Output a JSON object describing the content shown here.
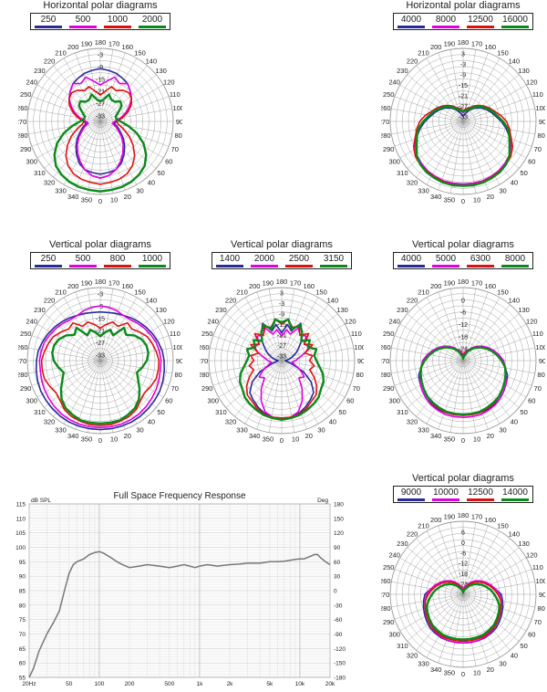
{
  "colors": {
    "blue": "#2a2a9a",
    "magenta": "#e000e0",
    "red": "#e01010",
    "green": "#0a8a1a",
    "grid": "#9a9a9a",
    "fr": "#777777"
  },
  "chart_data": [
    {
      "type": "polar",
      "id": "hp1",
      "title": "Horizontal polar diagrams",
      "legend": [
        "250",
        "500",
        "1000",
        "2000"
      ],
      "angle_labels": [
        "190",
        "180",
        "170",
        "160",
        "150",
        "140",
        "130",
        "120",
        "110",
        "100",
        "90",
        "80",
        "70",
        "60",
        "50",
        "40",
        "30",
        "20",
        "10",
        "0",
        "350",
        "340",
        "330",
        "320",
        "310",
        "300",
        "290",
        "280",
        "270",
        "260",
        "250",
        "240",
        "230",
        "220",
        "210",
        "200"
      ],
      "radial_labels": [
        "-3",
        "-9",
        "-15",
        "-21",
        "-27",
        "-33"
      ],
      "rmin_db": -36,
      "rmax_db": 0,
      "inverted": false,
      "series": [
        {
          "name": "250",
          "color": "blue",
          "values": [
            -10,
            -10.5,
            -11,
            -12,
            -13,
            -15,
            -17,
            -19,
            -22,
            -25,
            -28,
            -29,
            -27,
            -25,
            -22,
            -19,
            -16,
            -13,
            -11,
            -10.5,
            -10
          ]
        },
        {
          "name": "500",
          "color": "magenta",
          "values": [
            -18,
            -16,
            -13,
            -15,
            -13,
            -15,
            -17,
            -20,
            -23,
            -26,
            -29,
            -30,
            -28,
            -26,
            -23,
            -20,
            -17,
            -14,
            -11,
            -9,
            -8
          ]
        },
        {
          "name": "1000",
          "color": "red",
          "values": [
            -23,
            -21,
            -18,
            -19,
            -17,
            -16,
            -17,
            -19,
            -22,
            -25,
            -28,
            -27,
            -24,
            -20,
            -16,
            -12,
            -9,
            -7,
            -6,
            -5.5,
            -5
          ]
        },
        {
          "name": "2000",
          "color": "green",
          "values": [
            -26,
            -25,
            -22,
            -24,
            -24,
            -22,
            -23,
            -26,
            -28,
            -28,
            -26,
            -22,
            -17,
            -12,
            -8,
            -5,
            -3.5,
            -2.5,
            -2,
            -1.8,
            -1.5
          ]
        }
      ]
    },
    {
      "type": "polar",
      "id": "hp2",
      "title": "Horizontal polar diagrams",
      "legend": [
        "4000",
        "8000",
        "12500",
        "16000"
      ],
      "angle_labels": [
        "190",
        "180",
        "170",
        "160",
        "150",
        "140",
        "130",
        "120",
        "110",
        "100",
        "90",
        "80",
        "70",
        "60",
        "50",
        "40",
        "30",
        "20",
        "10",
        "0",
        "350",
        "340",
        "330",
        "320",
        "310",
        "300",
        "290",
        "280",
        "270",
        "260",
        "250",
        "240",
        "230",
        "220",
        "210",
        "200"
      ],
      "radial_labels": [
        "3",
        "-3",
        "-9",
        "-15",
        "-21",
        "-27",
        "-33"
      ],
      "rmin_db": -36,
      "rmax_db": 6,
      "inverted": false,
      "series": [
        {
          "name": "4000",
          "color": "blue",
          "values": [
            -33,
            -32,
            -31,
            -29,
            -27,
            -25,
            -23,
            -21,
            -19,
            -17,
            -14,
            -11,
            -8,
            -5,
            -3,
            -1.5,
            -0.5,
            0,
            0.3,
            0.5,
            0.5
          ]
        },
        {
          "name": "8000",
          "color": "magenta",
          "values": [
            -31,
            -30,
            -29,
            -27,
            -25,
            -23,
            -22,
            -20,
            -18,
            -16,
            -13,
            -10,
            -7,
            -5,
            -3,
            -2,
            -1,
            -0.5,
            0,
            0,
            0
          ]
        },
        {
          "name": "12500",
          "color": "red",
          "values": [
            -30,
            -29,
            -28,
            -27,
            -25,
            -23,
            -21,
            -19,
            -17,
            -14,
            -11,
            -9,
            -7,
            -4,
            -2,
            -1,
            -0.5,
            0,
            0.5,
            0.8,
            1
          ]
        },
        {
          "name": "16000",
          "color": "green",
          "values": [
            -30,
            -30,
            -29,
            -28,
            -26,
            -24,
            -22,
            -20,
            -18,
            -16,
            -13,
            -10,
            -8,
            -6,
            -3,
            -1,
            0,
            0.5,
            1,
            1.2,
            1
          ]
        }
      ]
    },
    {
      "type": "polar",
      "id": "vp1",
      "title": "Vertical polar diagrams",
      "legend": [
        "250",
        "500",
        "800",
        "1000"
      ],
      "angle_labels": [
        "190",
        "180",
        "170",
        "160",
        "150",
        "140",
        "130",
        "120",
        "110",
        "100",
        "90",
        "80",
        "70",
        "60",
        "50",
        "40",
        "30",
        "20",
        "10",
        "0",
        "350",
        "340",
        "330",
        "320",
        "310",
        "300",
        "290",
        "280",
        "270",
        "260",
        "250",
        "240",
        "230",
        "220",
        "210",
        "200"
      ],
      "radial_labels": [
        "-3",
        "-9",
        "-15",
        "-21",
        "-27",
        "-33"
      ],
      "rmin_db": -36,
      "rmax_db": 0,
      "inverted": false,
      "series": [
        {
          "name": "250",
          "color": "blue",
          "values": [
            -12,
            -12,
            -11.5,
            -11,
            -10,
            -9,
            -8,
            -7,
            -6,
            -5,
            -4.5,
            -4,
            -3.5,
            -3,
            -2.8,
            -2.5,
            -2.2,
            -2,
            -2,
            -2,
            -2
          ]
        },
        {
          "name": "500",
          "color": "magenta",
          "values": [
            -9,
            -9.5,
            -10,
            -11,
            -11,
            -10,
            -9,
            -8,
            -7,
            -6.5,
            -6,
            -6,
            -5.5,
            -5,
            -4.5,
            -4,
            -3.5,
            -3.2,
            -3,
            -3,
            -3
          ]
        },
        {
          "name": "800",
          "color": "red",
          "values": [
            -20,
            -18,
            -16,
            -17,
            -13,
            -14,
            -12,
            -10,
            -9,
            -8,
            -7,
            -7,
            -7,
            -8,
            -9,
            -8,
            -6,
            -5,
            -4.5,
            -4,
            -4
          ]
        },
        {
          "name": "1000",
          "color": "green",
          "values": [
            -24,
            -22,
            -20,
            -22,
            -16,
            -18,
            -15,
            -13,
            -12,
            -12,
            -13,
            -15,
            -17,
            -15,
            -12,
            -9,
            -7,
            -6,
            -5,
            -5,
            -5
          ]
        }
      ]
    },
    {
      "type": "polar",
      "id": "vp2",
      "title": "Vertical polar diagrams",
      "legend": [
        "1400",
        "2000",
        "2500",
        "3150"
      ],
      "angle_labels": [
        "190",
        "180",
        "170",
        "160",
        "150",
        "140",
        "130",
        "120",
        "110",
        "100",
        "90",
        "80",
        "70",
        "60",
        "50",
        "40",
        "30",
        "20",
        "10",
        "0",
        "350",
        "340",
        "330",
        "320",
        "310",
        "300",
        "290",
        "280",
        "270",
        "260",
        "250",
        "240",
        "230",
        "220",
        "210",
        "200"
      ],
      "radial_labels": [
        "3",
        "-3",
        "-9",
        "-15",
        "-21",
        "-27",
        "-33"
      ],
      "rmin_db": -36,
      "rmax_db": 6,
      "inverted": false,
      "series": [
        {
          "name": "1400",
          "color": "blue",
          "values": [
            -20,
            -15,
            -18,
            -12,
            -16,
            -20,
            -24,
            -27,
            -30,
            -32,
            -34,
            -33,
            -30,
            -22,
            -15,
            -10,
            -8,
            -6,
            -4,
            -3,
            -2.5
          ]
        },
        {
          "name": "2000",
          "color": "magenta",
          "values": [
            -22,
            -18,
            -20,
            -15,
            -18,
            -16,
            -20,
            -18,
            -22,
            -26,
            -28,
            -30,
            -28,
            -24,
            -20,
            -22,
            -16,
            -10,
            -5,
            -3,
            -3
          ]
        },
        {
          "name": "2500",
          "color": "red",
          "values": [
            -15,
            -12,
            -16,
            -14,
            -18,
            -14,
            -20,
            -16,
            -22,
            -18,
            -20,
            -17,
            -19,
            -15,
            -11,
            -8,
            -7,
            -5,
            -3.5,
            -3,
            -3
          ]
        },
        {
          "name": "3150",
          "color": "green",
          "values": [
            -14,
            -12,
            -17,
            -13,
            -16,
            -20,
            -16,
            -19,
            -15,
            -17,
            -16,
            -14,
            -11,
            -9,
            -8,
            -6,
            -5,
            -4,
            -3,
            -2.5,
            -2
          ]
        }
      ]
    },
    {
      "type": "polar",
      "id": "vp3",
      "title": "Vertical polar diagrams",
      "legend": [
        "4000",
        "5000",
        "6300",
        "8000"
      ],
      "angle_labels": [
        "190",
        "180",
        "170",
        "160",
        "150",
        "140",
        "130",
        "120",
        "110",
        "100",
        "90",
        "80",
        "70",
        "60",
        "50",
        "40",
        "30",
        "20",
        "10",
        "0",
        "350",
        "340",
        "330",
        "320",
        "310",
        "300",
        "290",
        "280",
        "270",
        "260",
        "250",
        "240",
        "230",
        "220",
        "210",
        "200"
      ],
      "radial_labels": [
        "0",
        "-6",
        "-12",
        "-18",
        "-24"
      ],
      "rmin_db": -30,
      "rmax_db": 6,
      "inverted": false,
      "series": [
        {
          "name": "4000",
          "color": "blue",
          "values": [
            -28,
            -27,
            -26,
            -25,
            -23,
            -21,
            -19,
            -17,
            -15,
            -13,
            -11,
            -9,
            -7,
            -6,
            -5,
            -4,
            -3.5,
            -3,
            -3,
            -3,
            -3
          ]
        },
        {
          "name": "5000",
          "color": "magenta",
          "values": [
            -27,
            -26,
            -25,
            -24,
            -22,
            -20,
            -18,
            -16,
            -14,
            -12,
            -10,
            -9,
            -8,
            -6,
            -5,
            -4,
            -3,
            -2.5,
            -2,
            -2,
            -2
          ]
        },
        {
          "name": "6300",
          "color": "red",
          "values": [
            -28,
            -27,
            -26,
            -24,
            -23,
            -21,
            -19,
            -17,
            -15,
            -13,
            -11,
            -9,
            -8,
            -7,
            -6,
            -5,
            -4,
            -3.5,
            -3,
            -3,
            -3
          ]
        },
        {
          "name": "8000",
          "color": "green",
          "values": [
            -29,
            -28,
            -27,
            -25,
            -23,
            -21,
            -19,
            -17,
            -15,
            -13,
            -11,
            -9,
            -8,
            -7,
            -6,
            -5,
            -4.5,
            -4,
            -3.5,
            -3.5,
            -3.5
          ]
        }
      ]
    },
    {
      "type": "polar",
      "id": "vp4",
      "title": "Vertical polar diagrams",
      "legend": [
        "9000",
        "10000",
        "12500",
        "14000"
      ],
      "angle_labels": [
        "190",
        "180",
        "170",
        "160",
        "150",
        "140",
        "130",
        "120",
        "110",
        "100",
        "90",
        "80",
        "70",
        "60",
        "50",
        "40",
        "30",
        "20",
        "10",
        "0",
        "350",
        "340",
        "330",
        "320",
        "310",
        "300",
        "290",
        "280",
        "270",
        "260",
        "250",
        "240",
        "230",
        "220",
        "210",
        "200"
      ],
      "radial_labels": [
        "6",
        "0",
        "-6",
        "-12",
        "-18",
        "-24"
      ],
      "rmin_db": -30,
      "rmax_db": 12,
      "inverted": false,
      "series": [
        {
          "name": "9000",
          "color": "blue",
          "values": [
            -28,
            -27,
            -26,
            -24,
            -22,
            -20,
            -18,
            -16,
            -14,
            -11,
            -8,
            -7,
            -6,
            -5,
            -4,
            -3,
            -2.5,
            -2,
            -2,
            -2,
            -2
          ]
        },
        {
          "name": "10000",
          "color": "magenta",
          "values": [
            -27,
            -26,
            -25,
            -23,
            -21,
            -19,
            -17,
            -15,
            -13,
            -11,
            -9,
            -8,
            -7,
            -6,
            -5,
            -4,
            -3,
            -2.5,
            -2,
            -2,
            -2
          ]
        },
        {
          "name": "12500",
          "color": "red",
          "values": [
            -28,
            -27,
            -26,
            -24,
            -22,
            -20,
            -18,
            -16,
            -14,
            -12,
            -10,
            -8,
            -7,
            -6,
            -5,
            -4,
            -3.5,
            -3,
            -3,
            -3,
            -3
          ]
        },
        {
          "name": "14000",
          "color": "green",
          "values": [
            -29,
            -28,
            -27,
            -26,
            -24,
            -22,
            -20,
            -18,
            -16,
            -14,
            -12,
            -10,
            -8,
            -7,
            -6,
            -5,
            -4.5,
            -4,
            -4,
            -4,
            -4
          ]
        }
      ]
    },
    {
      "type": "line",
      "id": "fr",
      "title": "Full Space Frequency Response",
      "ylabel_left": "dB SPL",
      "ylabel_right": "Deg",
      "yticks_left": [
        "115",
        "110",
        "105",
        "100",
        "95",
        "90",
        "85",
        "80",
        "75",
        "70",
        "65",
        "60",
        "55"
      ],
      "yticks_right": [
        "180",
        "150",
        "120",
        "90",
        "60",
        "30",
        "0",
        "-30",
        "-60",
        "-90",
        "-120",
        "-150",
        "-180"
      ],
      "xticks": [
        "20Hz",
        "50",
        "100",
        "200",
        "500",
        "1k",
        "2k",
        "5k",
        "10k",
        "20k"
      ],
      "xtick_values": [
        20,
        50,
        100,
        200,
        500,
        1000,
        2000,
        5000,
        10000,
        20000
      ],
      "ylim": [
        55,
        115
      ],
      "xlim": [
        20,
        20000
      ],
      "series": [
        {
          "name": "SPL",
          "x": [
            20,
            22,
            25,
            30,
            35,
            40,
            45,
            50,
            55,
            60,
            70,
            80,
            90,
            100,
            110,
            130,
            150,
            170,
            200,
            250,
            300,
            400,
            500,
            600,
            700,
            800,
            900,
            1000,
            1200,
            1500,
            2000,
            2500,
            3000,
            4000,
            5000,
            6000,
            7000,
            8000,
            9000,
            10000,
            11000,
            12000,
            13000,
            14000,
            15000,
            16000,
            18000,
            20000
          ],
          "y": [
            55,
            58,
            64,
            70,
            74,
            78,
            85,
            91,
            94,
            95,
            96,
            97.5,
            98.2,
            98.5,
            98,
            96.5,
            95,
            94,
            93,
            93.5,
            94,
            93.5,
            93,
            93.5,
            94,
            93.5,
            93,
            93.5,
            94,
            93.5,
            94,
            94.2,
            94.5,
            94.5,
            95,
            95,
            95.2,
            95.5,
            95.8,
            96,
            96,
            96.5,
            97,
            97.5,
            97.5,
            96.5,
            95,
            94
          ]
        }
      ]
    }
  ]
}
